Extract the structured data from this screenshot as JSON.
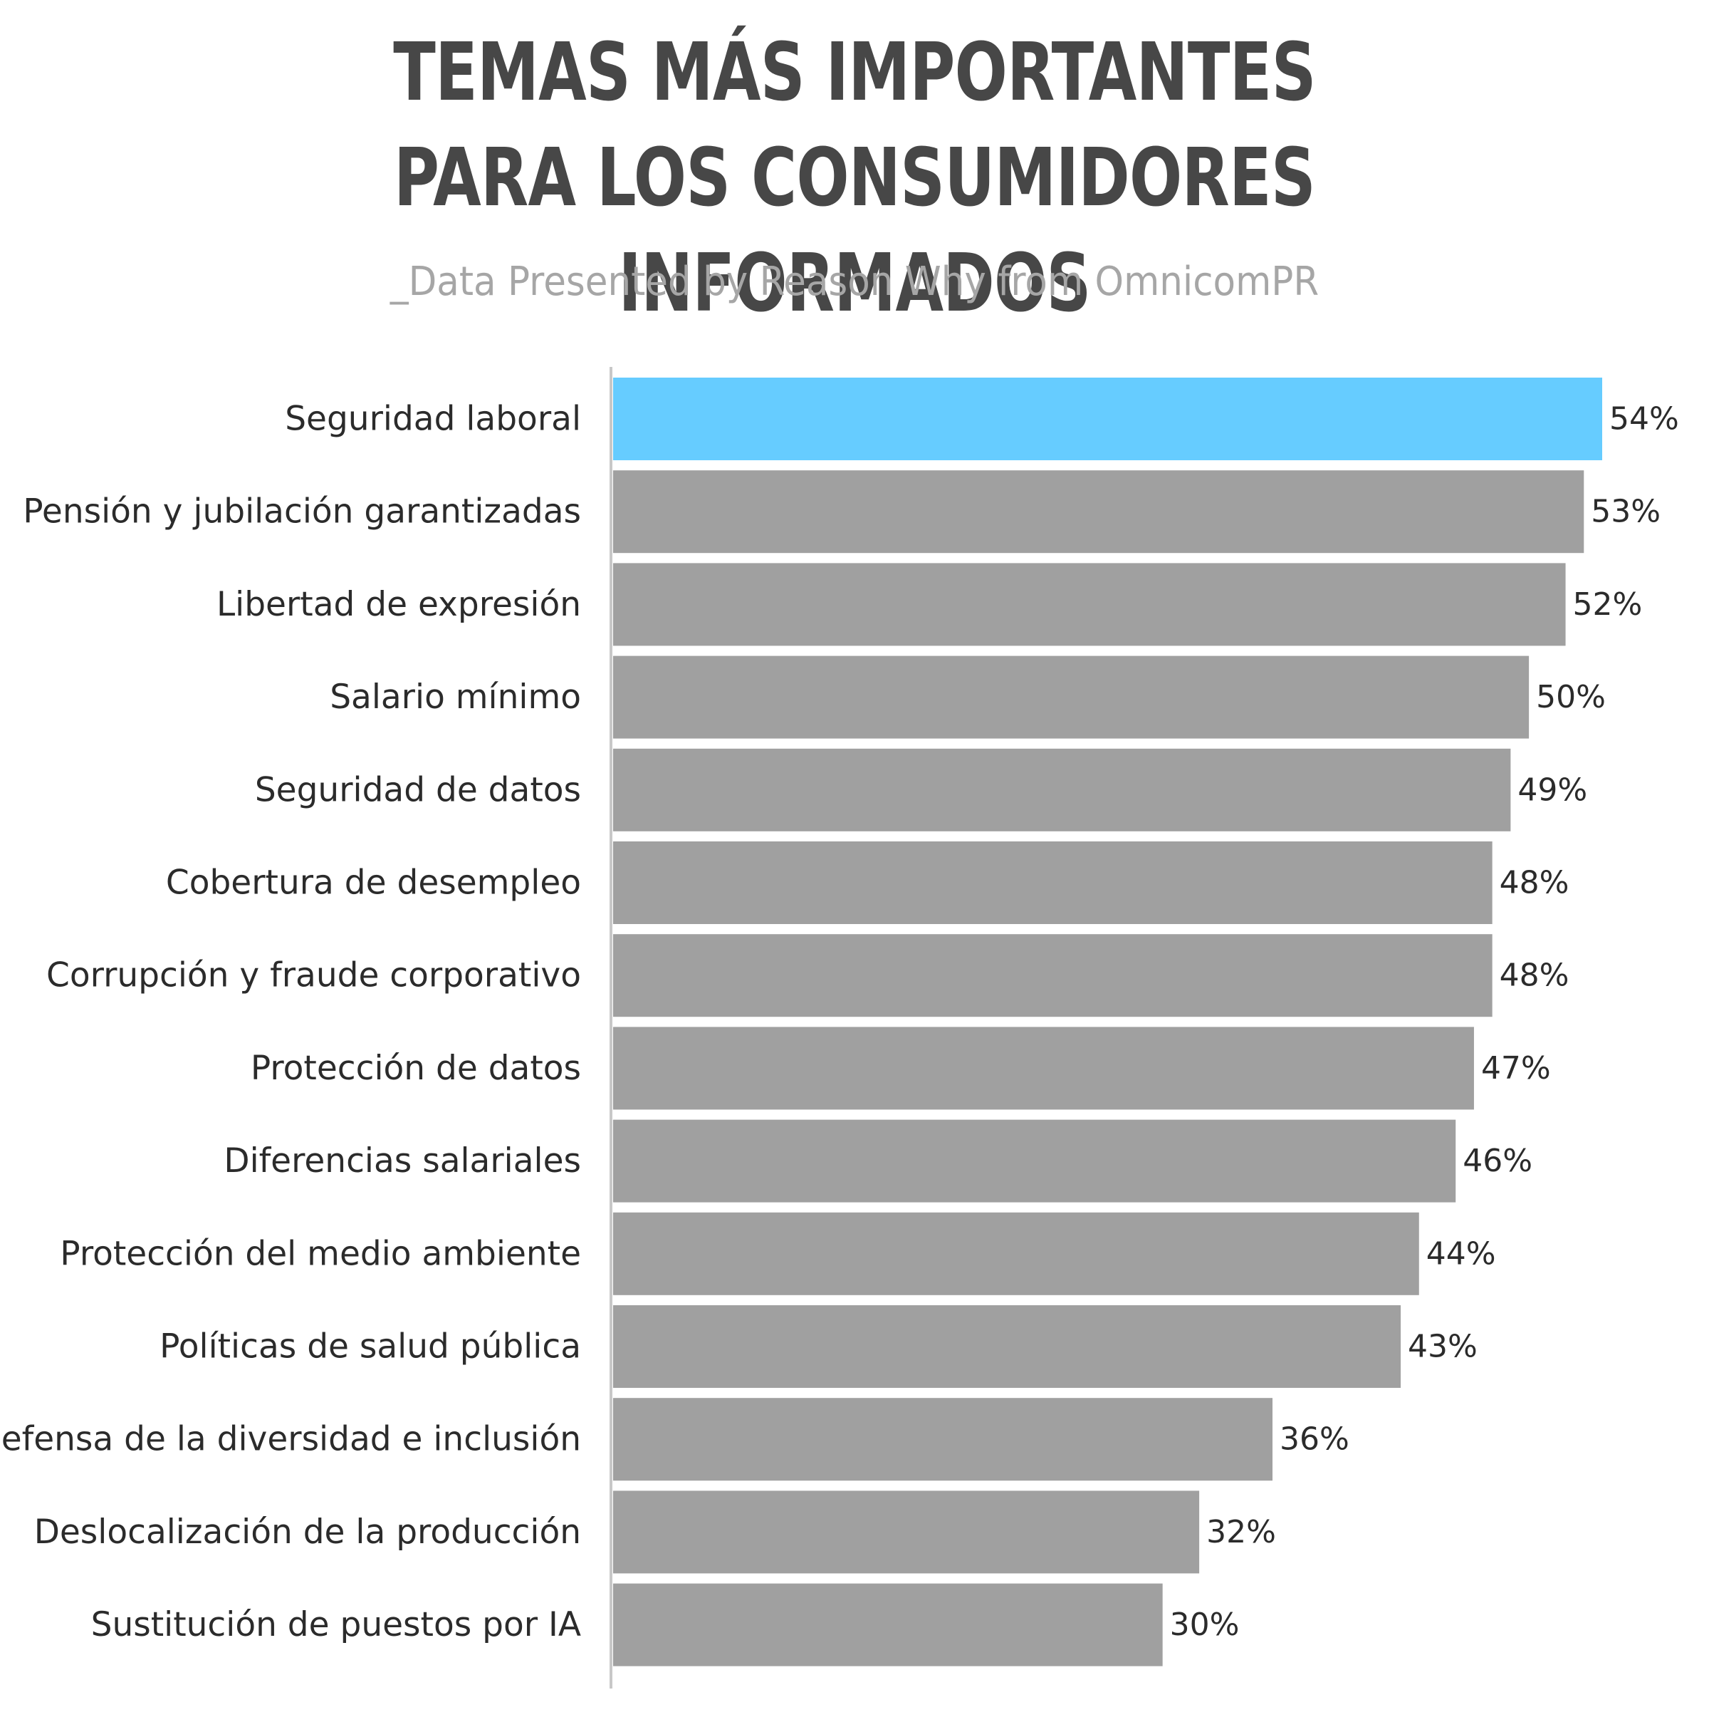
{
  "chart_data": {
    "type": "bar",
    "orientation": "horizontal",
    "title_lines": [
      "TEMAS MÁS IMPORTANTES",
      "PARA LOS CONSUMIDORES INFORMADOS"
    ],
    "subtitle": "_Data Presented by Reason Why from OmnicomPR",
    "categories": [
      "Seguridad laboral",
      "Pensión y jubilación garantizadas",
      "Libertad de expresión",
      "Salario mínimo",
      "Seguridad de datos",
      "Cobertura de desempleo",
      "Corrupción y fraude corporativo",
      "Protección de datos",
      "Diferencias salariales",
      "Protección del medio ambiente",
      "Políticas de salud pública",
      "Defensa de la diversidad e inclusión",
      "Deslocalización de la producción",
      "Sustitución de puestos por IA"
    ],
    "values": [
      54,
      53,
      52,
      50,
      49,
      48,
      48,
      47,
      46,
      44,
      43,
      36,
      32,
      30
    ],
    "value_labels": [
      "54%",
      "53%",
      "52%",
      "50%",
      "49%",
      "48%",
      "48%",
      "47%",
      "46%",
      "44%",
      "43%",
      "36%",
      "32%",
      "30%"
    ],
    "unit": "%",
    "xlim": [
      0,
      54
    ],
    "grid": false,
    "legend": "none",
    "colors": {
      "highlight": "#66ccff",
      "bar": "#a0a0a0",
      "axis": "#c8c8c8",
      "title": "#474747",
      "subtitle": "#a6a6a6"
    },
    "highlight_index": 0
  }
}
